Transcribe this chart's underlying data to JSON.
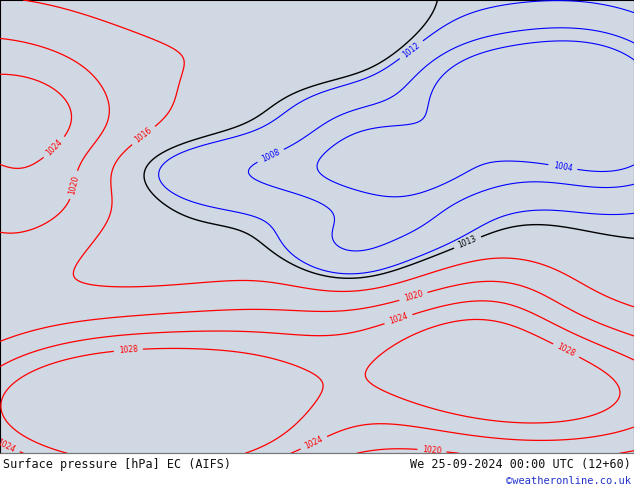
{
  "title_left": "Surface pressure [hPa] EC (AIFS)",
  "title_right": "We 25-09-2024 00:00 UTC (12+60)",
  "watermark": "©weatheronline.co.uk",
  "ocean_color": "#d0d8e4",
  "land_color": "#c8e8b0",
  "border_color": "#888888",
  "figsize": [
    6.34,
    4.9
  ],
  "dpi": 100,
  "extent": [
    -20,
    80,
    -50,
    45
  ],
  "font_size_title": 8.5,
  "watermark_color": "#2233cc",
  "label_color": "#111111",
  "red_levels": [
    1016,
    1020,
    1024,
    1028
  ],
  "black_levels": [
    1013
  ],
  "blue_levels": [
    1004,
    1008,
    1012
  ]
}
